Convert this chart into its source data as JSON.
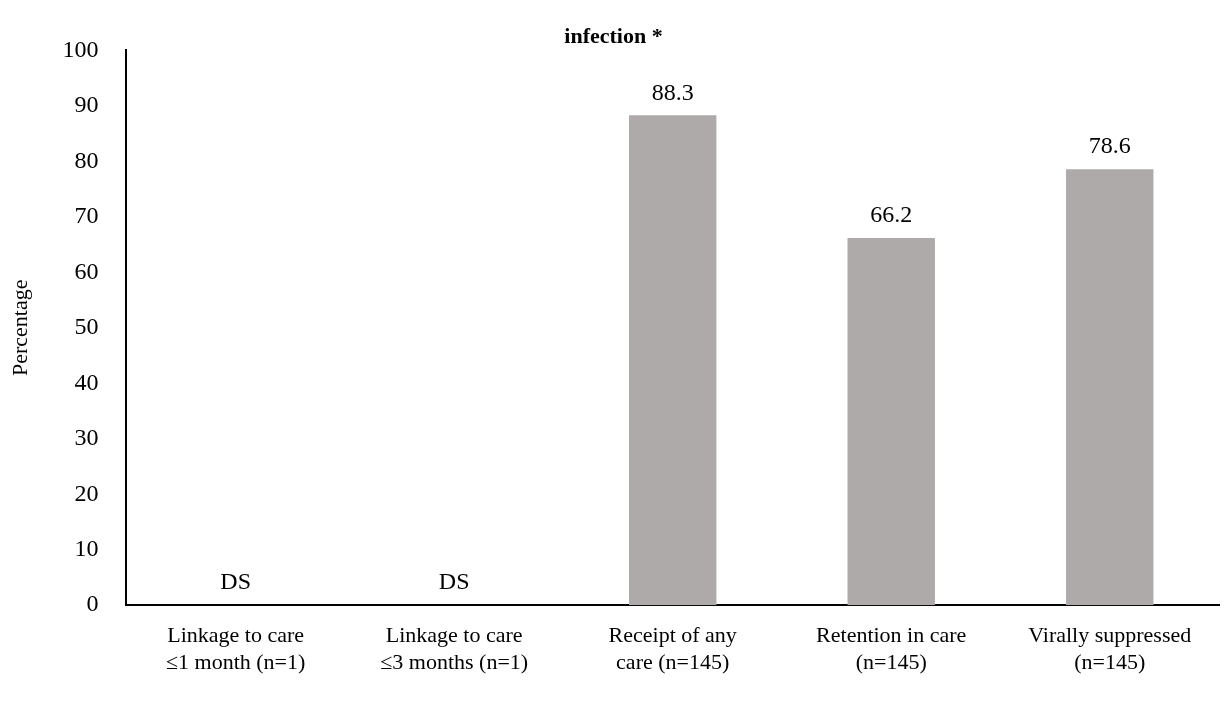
{
  "chart_data": {
    "type": "bar",
    "title": "infection *",
    "ylabel": "Percentage",
    "categories": [
      "Linkage to care\n≤1 month (n=1)",
      "Linkage to care\n≤3 months (n=1)",
      "Receipt of any\ncare (n=145)",
      "Retention in care\n(n=145)",
      "Virally suppressed\n(n=145)"
    ],
    "values": [
      null,
      null,
      88.3,
      66.2,
      78.6
    ],
    "value_labels": [
      "DS",
      "DS",
      "88.3",
      "66.2",
      "78.6"
    ],
    "color": "#aeaaaa",
    "ylim": [
      0,
      100
    ],
    "yticks": [
      0,
      10,
      20,
      30,
      40,
      50,
      60,
      70,
      80,
      90,
      100
    ],
    "grid": false,
    "legend": false
  }
}
